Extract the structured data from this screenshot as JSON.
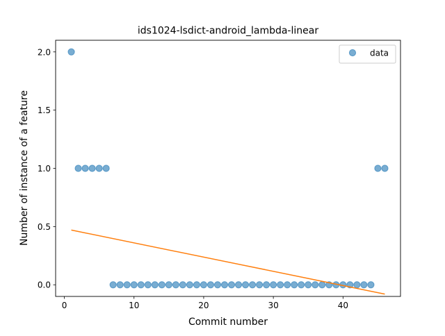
{
  "chart_data": {
    "type": "scatter",
    "title": "ids1024-lsdict-android_lambda-linear",
    "xlabel": "Commit number",
    "ylabel": "Number of instance of a feature",
    "xlim": [
      -1.25,
      48.25
    ],
    "ylim": [
      -0.1,
      2.1
    ],
    "x_ticks": [
      0,
      10,
      20,
      30,
      40
    ],
    "x_tick_labels": [
      "0",
      "10",
      "20",
      "30",
      "40"
    ],
    "y_ticks": [
      0.0,
      0.5,
      1.0,
      1.5,
      2.0
    ],
    "y_tick_labels": [
      "0.0",
      "0.5",
      "1.0",
      "1.5",
      "2.0"
    ],
    "grid": false,
    "legend_position": "top-right",
    "series": [
      {
        "name": "data",
        "type": "scatter",
        "color": "#1f77b4",
        "x": [
          1,
          2,
          3,
          4,
          5,
          6,
          7,
          8,
          9,
          10,
          11,
          12,
          13,
          14,
          15,
          16,
          17,
          18,
          19,
          20,
          21,
          22,
          23,
          24,
          25,
          26,
          27,
          28,
          29,
          30,
          31,
          32,
          33,
          34,
          35,
          36,
          37,
          38,
          39,
          40,
          41,
          42,
          43,
          44,
          45,
          46
        ],
        "y": [
          2,
          1,
          1,
          1,
          1,
          1,
          0,
          0,
          0,
          0,
          0,
          0,
          0,
          0,
          0,
          0,
          0,
          0,
          0,
          0,
          0,
          0,
          0,
          0,
          0,
          0,
          0,
          0,
          0,
          0,
          0,
          0,
          0,
          0,
          0,
          0,
          0,
          0,
          0,
          0,
          0,
          0,
          0,
          0,
          1,
          1
        ]
      },
      {
        "type": "line",
        "color": "#ff7f0e",
        "x": [
          1,
          46
        ],
        "y": [
          0.47,
          -0.08
        ]
      }
    ]
  }
}
